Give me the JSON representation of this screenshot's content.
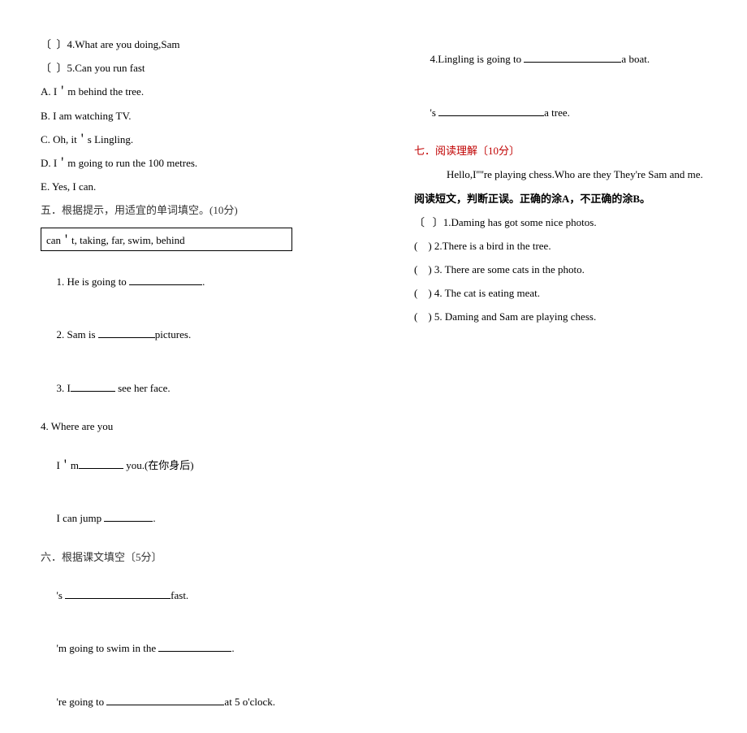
{
  "left": {
    "q4": "〔  〕4.What are you doing,Sam",
    "q5": "〔  〕5.Can you run fast",
    "optA": "A. I＇m behind the tree.",
    "optB": "B. I am watching TV.",
    "optC": "C. Oh, it＇s Lingling.",
    "optD": "D. I＇m going to run the 100 metres.",
    "optE": "E. Yes, I can.",
    "section5": "五．根据提示，用适宜的单词填空。(10分)",
    "wordbox": "can＇t,    taking,    far,    swim,    behind",
    "s5_1a": "1. He is going to ",
    "s5_1b": ".",
    "s5_2a": "2. Sam is ",
    "s5_2b": "pictures.",
    "s5_3a": "3. I",
    "s5_3b": " see her face.",
    "s5_4": "4. Where are you",
    "s5_4b_a": "I＇m",
    "s5_4b_b": " you.(在你身后)",
    "s5_5a": "I can jump ",
    "s5_5b": ".",
    "section6": "六．根据课文填空〔5分〕",
    "s6_1a": "'s ",
    "s6_1b": "fast.",
    "s6_2a": "'m going to swim in the ",
    "s6_2b": ".",
    "s6_3a": "'re going to ",
    "s6_3b": "at 5 o'clock."
  },
  "right": {
    "s6_4a": "4.Lingling is going to ",
    "s6_4b": "a boat.",
    "s6_5a": "'s ",
    "s6_5b": "a tree.",
    "section7": "七．阅读理解〔10分〕",
    "passage": "Hello,I''''re playing chess.Who are they They're Sam and me.",
    "instruction": "阅读短文，判断正误。正确的涂A，不正确的涂B。",
    "q1": "〔   〕1.Daming has got some nice photos.",
    "q2": "(    ) 2.There is a bird in the tree.",
    "q3": "(    ) 3. There are some cats in the photo.",
    "q4": "(    ) 4. The cat is eating meat.",
    "q5": "(    ) 5. Daming and Sam are playing chess."
  },
  "blanks": {
    "w90": 90,
    "w70": 70,
    "w55": 55,
    "w60": 60,
    "w130": 130,
    "w145": 145,
    "w100": 100,
    "w120": 120
  }
}
